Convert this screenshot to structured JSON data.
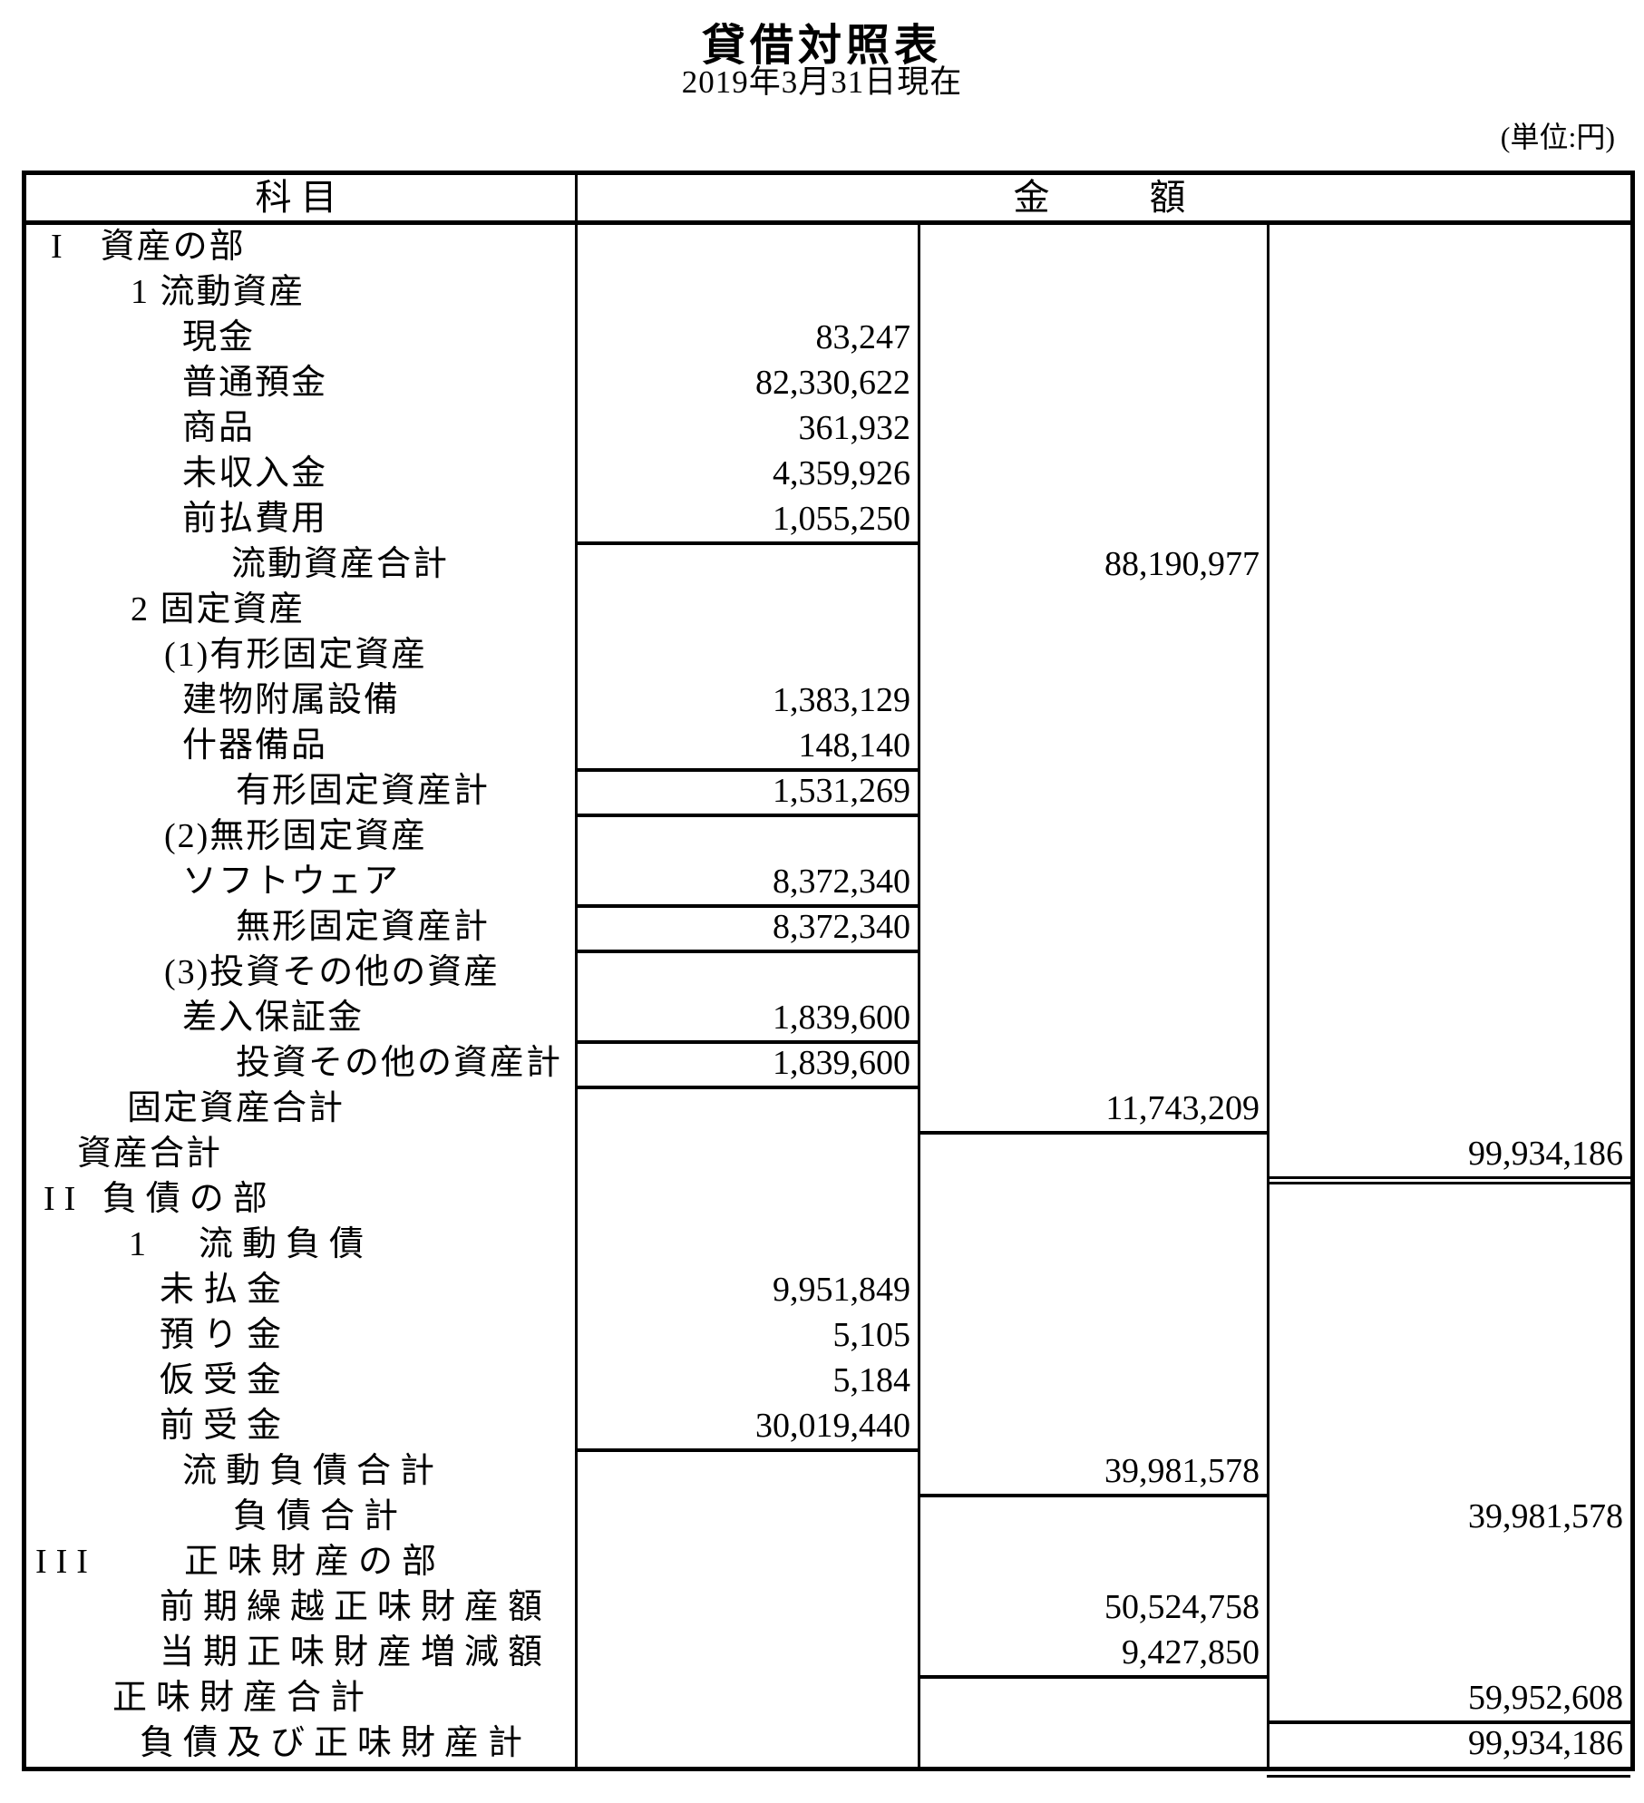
{
  "title": "貸借対照表",
  "subtitle": "2019年3月31日現在",
  "unit_label": "(単位:円)",
  "table": {
    "header": {
      "subject": "科目",
      "amount": "金　　額"
    },
    "rows": [
      {
        "label": "I　資産の部",
        "indent": 27,
        "spacing": "narrow",
        "amount": "",
        "col": 0,
        "rule": ""
      },
      {
        "label": "1 流動資産",
        "indent": 115,
        "spacing": "narrow",
        "amount": "",
        "col": 0,
        "rule": ""
      },
      {
        "label": "現金",
        "indent": 172,
        "spacing": "narrow",
        "amount": "83,247",
        "col": 1,
        "rule": ""
      },
      {
        "label": "普通預金",
        "indent": 172,
        "spacing": "narrow",
        "amount": "82,330,622",
        "col": 1,
        "rule": ""
      },
      {
        "label": "商品",
        "indent": 172,
        "spacing": "narrow",
        "amount": "361,932",
        "col": 1,
        "rule": ""
      },
      {
        "label": "未収入金",
        "indent": 172,
        "spacing": "narrow",
        "amount": "4,359,926",
        "col": 1,
        "rule": ""
      },
      {
        "label": "前払費用",
        "indent": 172,
        "spacing": "narrow",
        "amount": "1,055,250",
        "col": 1,
        "rule": "single"
      },
      {
        "label": "流動資産合計",
        "indent": 226,
        "spacing": "narrow",
        "amount": "88,190,977",
        "col": 2,
        "rule": ""
      },
      {
        "label": "2 固定資産",
        "indent": 115,
        "spacing": "narrow",
        "amount": "",
        "col": 0,
        "rule": ""
      },
      {
        "label": "(1)有形固定資産",
        "indent": 152,
        "spacing": "narrow",
        "amount": "",
        "col": 0,
        "rule": ""
      },
      {
        "label": "建物附属設備",
        "indent": 172,
        "spacing": "narrow",
        "amount": "1,383,129",
        "col": 1,
        "rule": ""
      },
      {
        "label": "什器備品",
        "indent": 172,
        "spacing": "narrow",
        "amount": "148,140",
        "col": 1,
        "rule": "single"
      },
      {
        "label": "有形固定資産計",
        "indent": 231,
        "spacing": "narrow",
        "amount": "1,531,269",
        "col": 1,
        "rule": "single"
      },
      {
        "label": "(2)無形固定資産",
        "indent": 152,
        "spacing": "narrow",
        "amount": "",
        "col": 0,
        "rule": ""
      },
      {
        "label": "ソフトウェア",
        "indent": 172,
        "spacing": "narrow",
        "amount": "8,372,340",
        "col": 1,
        "rule": "single"
      },
      {
        "label": "無形固定資産計",
        "indent": 231,
        "spacing": "narrow",
        "amount": "8,372,340",
        "col": 1,
        "rule": "single"
      },
      {
        "label": "(3)投資その他の資産",
        "indent": 152,
        "spacing": "narrow",
        "amount": "",
        "col": 0,
        "rule": ""
      },
      {
        "label": "差入保証金",
        "indent": 172,
        "spacing": "narrow",
        "amount": "1,839,600",
        "col": 1,
        "rule": "single"
      },
      {
        "label": "投資その他の資産計",
        "indent": 231,
        "spacing": "narrow",
        "amount": "1,839,600",
        "col": 1,
        "rule": "single"
      },
      {
        "label": "固定資産合計",
        "indent": 111,
        "spacing": "narrow",
        "amount": "11,743,209",
        "col": 2,
        "rule": "single"
      },
      {
        "label": "資産合計",
        "indent": 56,
        "spacing": "narrow",
        "amount": "99,934,186",
        "col": 3,
        "rule": "double"
      },
      {
        "label": "II 負債の部",
        "indent": 19,
        "spacing": "wide",
        "amount": "",
        "col": 0,
        "rule": ""
      },
      {
        "label": "1　流動負債",
        "indent": 113,
        "spacing": "wide",
        "amount": "",
        "col": 0,
        "rule": ""
      },
      {
        "label": "未払金",
        "indent": 147,
        "spacing": "wide",
        "amount": "9,951,849",
        "col": 1,
        "rule": ""
      },
      {
        "label": "預り金",
        "indent": 147,
        "spacing": "wide",
        "amount": "5,105",
        "col": 1,
        "rule": ""
      },
      {
        "label": "仮受金",
        "indent": 147,
        "spacing": "wide",
        "amount": "5,184",
        "col": 1,
        "rule": ""
      },
      {
        "label": "前受金",
        "indent": 147,
        "spacing": "wide",
        "amount": "30,019,440",
        "col": 1,
        "rule": "single"
      },
      {
        "label": "流動負債合計",
        "indent": 172,
        "spacing": "wide",
        "amount": "39,981,578",
        "col": 2,
        "rule": "single"
      },
      {
        "label": "負債合計",
        "indent": 228,
        "spacing": "wide",
        "amount": "39,981,578",
        "col": 3,
        "rule": ""
      },
      {
        "label": "III　　正味財産の部",
        "indent": 10,
        "spacing": "wide",
        "amount": "",
        "col": 0,
        "rule": ""
      },
      {
        "label": "前期繰越正味財産額",
        "indent": 147,
        "spacing": "wide",
        "amount": "50,524,758",
        "col": 2,
        "rule": ""
      },
      {
        "label": "当期正味財産増減額",
        "indent": 147,
        "spacing": "wide",
        "amount": "9,427,850",
        "col": 2,
        "rule": "single"
      },
      {
        "label": "正味財産合計",
        "indent": 95,
        "spacing": "wide",
        "amount": "59,952,608",
        "col": 3,
        "rule": "single"
      },
      {
        "label": "負債及び正味財産計",
        "indent": 125,
        "spacing": "wide",
        "amount": "99,934,186",
        "col": 3,
        "rule": "double-bottom"
      }
    ]
  }
}
